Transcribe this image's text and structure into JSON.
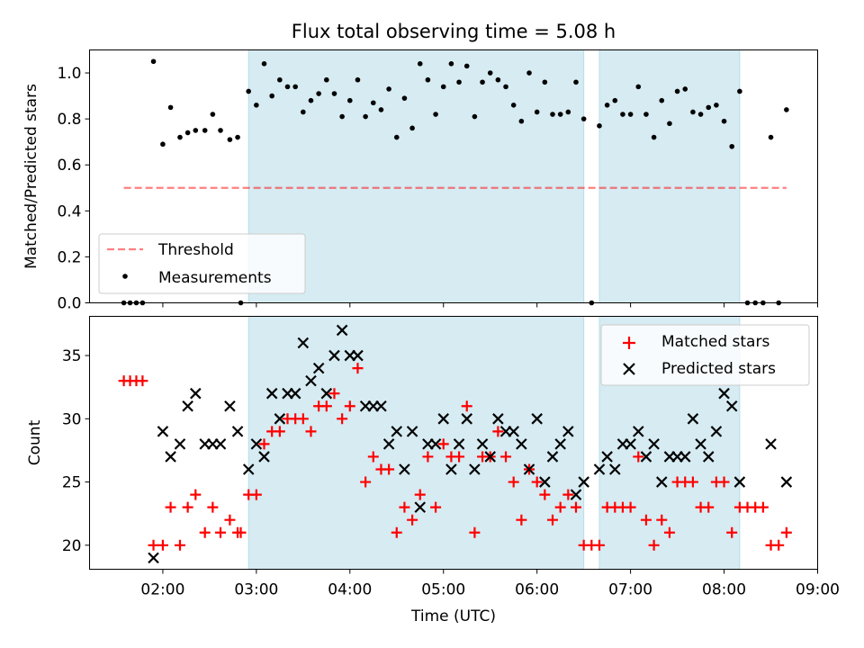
{
  "figure_title": "Flux total observing time = 5.08 h",
  "colors": {
    "shade": "#add8e6",
    "threshold": "#ff0000",
    "measurement": "#000000",
    "matched": "#ff0000",
    "predicted": "#000000"
  },
  "chart_data": [
    {
      "type": "scatter",
      "title": "Flux total observing time = 5.08 h",
      "xlabel": "",
      "ylabel": "Matched/Predicted stars",
      "xlim": [
        "01:13",
        "09:00"
      ],
      "ylim": [
        0,
        1.1
      ],
      "yticks": [
        "0.0",
        "0.2",
        "0.4",
        "0.6",
        "0.8",
        "1.0"
      ],
      "shaded_intervals": [
        [
          "02:55",
          "06:30"
        ],
        [
          "06:40",
          "08:10"
        ]
      ],
      "threshold": {
        "name": "Threshold",
        "value": 0.5,
        "x": [
          "01:35",
          "08:40"
        ],
        "style": "dashed"
      },
      "legend": {
        "position": "lower-left",
        "entries": [
          "Threshold",
          "Measurements"
        ]
      },
      "series": [
        {
          "name": "Measurements",
          "points": [
            [
              "01:35",
              0
            ],
            [
              "01:39",
              0
            ],
            [
              "01:43",
              0
            ],
            [
              "01:47",
              0
            ],
            [
              "01:54",
              1.05
            ],
            [
              "02:00",
              0.69
            ],
            [
              "02:05",
              0.85
            ],
            [
              "02:11",
              0.72
            ],
            [
              "02:16",
              0.74
            ],
            [
              "02:21",
              0.75
            ],
            [
              "02:27",
              0.75
            ],
            [
              "02:32",
              0.82
            ],
            [
              "02:37",
              0.75
            ],
            [
              "02:43",
              0.71
            ],
            [
              "02:48",
              0.72
            ],
            [
              "02:50",
              0
            ],
            [
              "02:55",
              0.92
            ],
            [
              "03:00",
              0.86
            ],
            [
              "03:05",
              1.04
            ],
            [
              "03:10",
              0.9
            ],
            [
              "03:15",
              0.97
            ],
            [
              "03:20",
              0.94
            ],
            [
              "03:25",
              0.94
            ],
            [
              "03:30",
              0.83
            ],
            [
              "03:35",
              0.88
            ],
            [
              "03:40",
              0.91
            ],
            [
              "03:45",
              0.97
            ],
            [
              "03:50",
              0.91
            ],
            [
              "03:55",
              0.81
            ],
            [
              "04:00",
              0.88
            ],
            [
              "04:05",
              0.97
            ],
            [
              "04:10",
              0.81
            ],
            [
              "04:15",
              0.87
            ],
            [
              "04:20",
              0.84
            ],
            [
              "04:25",
              0.93
            ],
            [
              "04:30",
              0.72
            ],
            [
              "04:35",
              0.89
            ],
            [
              "04:40",
              0.76
            ],
            [
              "04:45",
              1.04
            ],
            [
              "04:50",
              0.97
            ],
            [
              "04:55",
              0.82
            ],
            [
              "05:00",
              0.94
            ],
            [
              "05:05",
              1.04
            ],
            [
              "05:10",
              0.96
            ],
            [
              "05:15",
              1.03
            ],
            [
              "05:20",
              0.81
            ],
            [
              "05:25",
              0.96
            ],
            [
              "05:30",
              1.0
            ],
            [
              "05:35",
              0.97
            ],
            [
              "05:40",
              0.94
            ],
            [
              "05:45",
              0.86
            ],
            [
              "05:50",
              0.79
            ],
            [
              "05:55",
              1.0
            ],
            [
              "06:00",
              0.83
            ],
            [
              "06:05",
              0.96
            ],
            [
              "06:10",
              0.82
            ],
            [
              "06:15",
              0.82
            ],
            [
              "06:20",
              0.83
            ],
            [
              "06:25",
              0.96
            ],
            [
              "06:30",
              0.8
            ],
            [
              "06:35",
              0
            ],
            [
              "06:40",
              0.77
            ],
            [
              "06:45",
              0.86
            ],
            [
              "06:50",
              0.88
            ],
            [
              "06:55",
              0.82
            ],
            [
              "07:00",
              0.82
            ],
            [
              "07:05",
              0.94
            ],
            [
              "07:10",
              0.82
            ],
            [
              "07:15",
              0.72
            ],
            [
              "07:20",
              0.88
            ],
            [
              "07:25",
              0.78
            ],
            [
              "07:30",
              0.92
            ],
            [
              "07:35",
              0.93
            ],
            [
              "07:40",
              0.83
            ],
            [
              "07:45",
              0.82
            ],
            [
              "07:50",
              0.85
            ],
            [
              "07:55",
              0.86
            ],
            [
              "08:00",
              0.79
            ],
            [
              "08:05",
              0.68
            ],
            [
              "08:10",
              0.92
            ],
            [
              "08:15",
              0
            ],
            [
              "08:20",
              0
            ],
            [
              "08:25",
              0
            ],
            [
              "08:30",
              0.72
            ],
            [
              "08:35",
              0
            ],
            [
              "08:40",
              0.84
            ]
          ]
        }
      ]
    },
    {
      "type": "scatter",
      "title": "",
      "xlabel": "Time (UTC)",
      "ylabel": "Count",
      "xlim": [
        "01:13",
        "09:00"
      ],
      "ylim": [
        18.1,
        38.1
      ],
      "yticks": [
        "20",
        "25",
        "30",
        "35"
      ],
      "xticks": [
        "02:00",
        "03:00",
        "04:00",
        "05:00",
        "06:00",
        "07:00",
        "08:00",
        "09:00"
      ],
      "shaded_intervals": [
        [
          "02:55",
          "06:30"
        ],
        [
          "06:40",
          "08:10"
        ]
      ],
      "legend": {
        "position": "top-right",
        "entries": [
          "Matched stars",
          "Predicted stars"
        ]
      },
      "series": [
        {
          "name": "Matched stars",
          "marker": "+",
          "points": [
            [
              "01:35",
              33
            ],
            [
              "01:39",
              33
            ],
            [
              "01:43",
              33
            ],
            [
              "01:47",
              33
            ],
            [
              "01:54",
              20
            ],
            [
              "02:00",
              20
            ],
            [
              "02:05",
              23
            ],
            [
              "02:11",
              20
            ],
            [
              "02:16",
              23
            ],
            [
              "02:21",
              24
            ],
            [
              "02:27",
              21
            ],
            [
              "02:32",
              23
            ],
            [
              "02:37",
              21
            ],
            [
              "02:43",
              22
            ],
            [
              "02:48",
              21
            ],
            [
              "02:50",
              21
            ],
            [
              "02:55",
              24
            ],
            [
              "03:00",
              24
            ],
            [
              "03:05",
              28
            ],
            [
              "03:10",
              29
            ],
            [
              "03:15",
              29
            ],
            [
              "03:20",
              30
            ],
            [
              "03:25",
              30
            ],
            [
              "03:30",
              30
            ],
            [
              "03:35",
              29
            ],
            [
              "03:40",
              31
            ],
            [
              "03:45",
              31
            ],
            [
              "03:50",
              32
            ],
            [
              "03:55",
              30
            ],
            [
              "04:00",
              31
            ],
            [
              "04:05",
              34
            ],
            [
              "04:10",
              25
            ],
            [
              "04:15",
              27
            ],
            [
              "04:20",
              26
            ],
            [
              "04:25",
              26
            ],
            [
              "04:30",
              21
            ],
            [
              "04:35",
              23
            ],
            [
              "04:40",
              22
            ],
            [
              "04:45",
              24
            ],
            [
              "04:50",
              27
            ],
            [
              "04:55",
              23
            ],
            [
              "05:00",
              28
            ],
            [
              "05:05",
              27
            ],
            [
              "05:10",
              27
            ],
            [
              "05:15",
              31
            ],
            [
              "05:20",
              21
            ],
            [
              "05:25",
              27
            ],
            [
              "05:30",
              27
            ],
            [
              "05:35",
              29
            ],
            [
              "05:40",
              27
            ],
            [
              "05:45",
              25
            ],
            [
              "05:50",
              22
            ],
            [
              "05:55",
              26
            ],
            [
              "06:00",
              25
            ],
            [
              "06:05",
              24
            ],
            [
              "06:10",
              22
            ],
            [
              "06:15",
              23
            ],
            [
              "06:20",
              24
            ],
            [
              "06:25",
              23
            ],
            [
              "06:30",
              20
            ],
            [
              "06:35",
              20
            ],
            [
              "06:40",
              20
            ],
            [
              "06:45",
              23
            ],
            [
              "06:50",
              23
            ],
            [
              "06:55",
              23
            ],
            [
              "07:00",
              23
            ],
            [
              "07:05",
              27
            ],
            [
              "07:10",
              22
            ],
            [
              "07:15",
              20
            ],
            [
              "07:20",
              22
            ],
            [
              "07:25",
              21
            ],
            [
              "07:30",
              25
            ],
            [
              "07:35",
              25
            ],
            [
              "07:40",
              25
            ],
            [
              "07:45",
              23
            ],
            [
              "07:50",
              23
            ],
            [
              "07:55",
              25
            ],
            [
              "08:00",
              25
            ],
            [
              "08:05",
              21
            ],
            [
              "08:10",
              23
            ],
            [
              "08:15",
              23
            ],
            [
              "08:20",
              23
            ],
            [
              "08:25",
              23
            ],
            [
              "08:30",
              20
            ],
            [
              "08:35",
              20
            ],
            [
              "08:40",
              21
            ]
          ]
        },
        {
          "name": "Predicted stars",
          "marker": "x",
          "points": [
            [
              "01:54",
              19
            ],
            [
              "02:00",
              29
            ],
            [
              "02:05",
              27
            ],
            [
              "02:11",
              28
            ],
            [
              "02:16",
              31
            ],
            [
              "02:21",
              32
            ],
            [
              "02:27",
              28
            ],
            [
              "02:32",
              28
            ],
            [
              "02:37",
              28
            ],
            [
              "02:43",
              31
            ],
            [
              "02:48",
              29
            ],
            [
              "02:55",
              26
            ],
            [
              "03:00",
              28
            ],
            [
              "03:05",
              27
            ],
            [
              "03:10",
              32
            ],
            [
              "03:15",
              30
            ],
            [
              "03:20",
              32
            ],
            [
              "03:25",
              32
            ],
            [
              "03:30",
              36
            ],
            [
              "03:35",
              33
            ],
            [
              "03:40",
              34
            ],
            [
              "03:45",
              32
            ],
            [
              "03:50",
              35
            ],
            [
              "03:55",
              37
            ],
            [
              "04:00",
              35
            ],
            [
              "04:05",
              35
            ],
            [
              "04:10",
              31
            ],
            [
              "04:15",
              31
            ],
            [
              "04:20",
              31
            ],
            [
              "04:25",
              28
            ],
            [
              "04:30",
              29
            ],
            [
              "04:35",
              26
            ],
            [
              "04:40",
              29
            ],
            [
              "04:45",
              23
            ],
            [
              "04:50",
              28
            ],
            [
              "04:55",
              28
            ],
            [
              "05:00",
              30
            ],
            [
              "05:05",
              26
            ],
            [
              "05:10",
              28
            ],
            [
              "05:15",
              30
            ],
            [
              "05:20",
              26
            ],
            [
              "05:25",
              28
            ],
            [
              "05:30",
              27
            ],
            [
              "05:35",
              30
            ],
            [
              "05:40",
              29
            ],
            [
              "05:45",
              29
            ],
            [
              "05:50",
              28
            ],
            [
              "05:55",
              26
            ],
            [
              "06:00",
              30
            ],
            [
              "06:05",
              25
            ],
            [
              "06:10",
              27
            ],
            [
              "06:15",
              28
            ],
            [
              "06:20",
              29
            ],
            [
              "06:25",
              24
            ],
            [
              "06:30",
              25
            ],
            [
              "06:40",
              26
            ],
            [
              "06:45",
              27
            ],
            [
              "06:50",
              26
            ],
            [
              "06:55",
              28
            ],
            [
              "07:00",
              28
            ],
            [
              "07:05",
              29
            ],
            [
              "07:10",
              27
            ],
            [
              "07:15",
              28
            ],
            [
              "07:20",
              25
            ],
            [
              "07:25",
              27
            ],
            [
              "07:30",
              27
            ],
            [
              "07:35",
              27
            ],
            [
              "07:40",
              30
            ],
            [
              "07:45",
              28
            ],
            [
              "07:50",
              27
            ],
            [
              "07:55",
              29
            ],
            [
              "08:00",
              32
            ],
            [
              "08:05",
              31
            ],
            [
              "08:10",
              25
            ],
            [
              "08:30",
              28
            ],
            [
              "08:40",
              25
            ]
          ]
        }
      ]
    }
  ]
}
